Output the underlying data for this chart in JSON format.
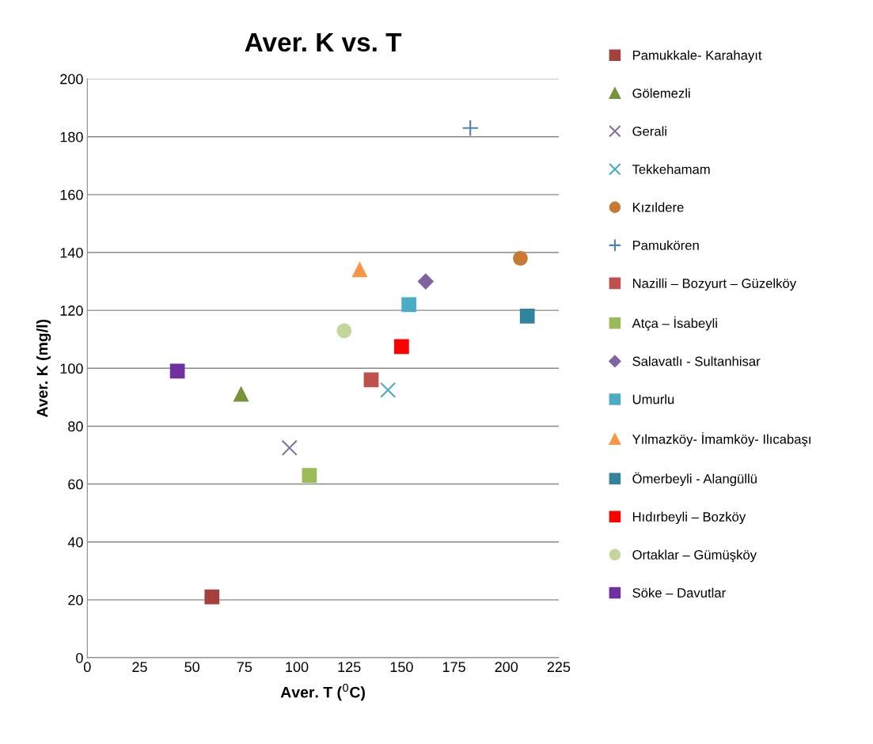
{
  "chart_data": {
    "type": "scatter",
    "title": "Aver. K vs. T",
    "xlabel": "Aver. T ($^{0}$C)",
    "ylabel": "Aver. K (mg/l)",
    "xlim": [
      0,
      225
    ],
    "xticks": [
      0,
      25,
      50,
      75,
      100,
      125,
      150,
      175,
      200,
      225
    ],
    "ylim": [
      0,
      200
    ],
    "yticks": [
      0,
      20,
      40,
      60,
      80,
      100,
      120,
      140,
      160,
      180,
      200
    ],
    "grid": "y",
    "legend": "right",
    "series": [
      {
        "name": "Pamukkale- Karahayıt",
        "color": "#a5413c",
        "marker": "square",
        "x": [
          59.5
        ],
        "values": [
          21
        ]
      },
      {
        "name": "Gölemezli",
        "color": "#77933c",
        "marker": "triangle",
        "x": [
          73.4
        ],
        "values": [
          91
        ]
      },
      {
        "name": "Gerali",
        "color": "#7f6fa0",
        "marker": "cross",
        "x": [
          96.5
        ],
        "values": [
          72.5
        ]
      },
      {
        "name": "Tekkehamam",
        "color": "#4bacc6",
        "marker": "cross",
        "x": [
          143.5
        ],
        "values": [
          92.5
        ]
      },
      {
        "name": "Kızıldere",
        "color": "#c87a35",
        "marker": "circle",
        "x": [
          206.7
        ],
        "values": [
          138
        ]
      },
      {
        "name": "Pamukören",
        "color": "#4f81bd",
        "marker": "plus",
        "x": [
          182.8
        ],
        "values": [
          183
        ]
      },
      {
        "name": "Nazilli – Bozyurt – Güzelköy",
        "color": "#c0504d",
        "marker": "square",
        "x": [
          135.5
        ],
        "values": [
          96
        ]
      },
      {
        "name": "Atça – İsabeyli",
        "color": "#9bbb59",
        "marker": "square",
        "x": [
          106
        ],
        "values": [
          63
        ]
      },
      {
        "name": "Salavatlı - Sultanhisar",
        "color": "#8064a2",
        "marker": "diamond",
        "x": [
          161.5
        ],
        "values": [
          130
        ]
      },
      {
        "name": "Umurlu",
        "color": "#4bacc6",
        "marker": "square",
        "x": [
          153.5
        ],
        "values": [
          122
        ]
      },
      {
        "name": "Yılmazköy- İmamköy- Ilıcabaşı",
        "color": "#f79646",
        "marker": "triangle",
        "x": [
          130
        ],
        "values": [
          134
        ]
      },
      {
        "name": "Ömerbeyli - Alangüllü",
        "color": "#31849b",
        "marker": "square",
        "x": [
          210
        ],
        "values": [
          118
        ]
      },
      {
        "name": "Hıdırbeyli – Bozköy",
        "color": "#ff0000",
        "marker": "square",
        "x": [
          150
        ],
        "values": [
          107.5
        ]
      },
      {
        "name": "Ortaklar – Gümüşköy",
        "color": "#c3d69b",
        "marker": "circle",
        "x": [
          122.6
        ],
        "values": [
          113
        ]
      },
      {
        "name": "Söke – Davutlar",
        "color": "#7030a0",
        "marker": "square",
        "x": [
          43
        ],
        "values": [
          99
        ]
      }
    ]
  }
}
